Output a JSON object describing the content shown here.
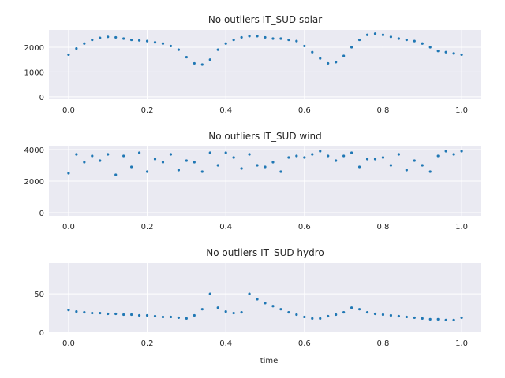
{
  "figure": {
    "xlabel": "time"
  },
  "colors": {
    "points": "#1f77b4",
    "panel": "#EAEAF2",
    "grid": "#ffffff"
  },
  "chart_data": [
    {
      "type": "scatter",
      "title": "No outliers IT_SUD solar",
      "xlabel": "",
      "ylabel": "",
      "xlim": [
        -0.05,
        1.05
      ],
      "ylim": [
        -100,
        2700
      ],
      "xticks": [
        0.0,
        0.2,
        0.4,
        0.6,
        0.8,
        1.0
      ],
      "xtick_labels": [
        "0.0",
        "0.2",
        "0.4",
        "0.6",
        "0.8",
        "1.0"
      ],
      "yticks": [
        0,
        1000,
        2000
      ],
      "ytick_labels": [
        "0",
        "1000",
        "2000"
      ],
      "grid": true,
      "series": [
        {
          "x": [
            0.0,
            0.02,
            0.04,
            0.06,
            0.08,
            0.1,
            0.12,
            0.14,
            0.16,
            0.18,
            0.2,
            0.22,
            0.24,
            0.26,
            0.28,
            0.3,
            0.32,
            0.34,
            0.36,
            0.38,
            0.4,
            0.42,
            0.44,
            0.46,
            0.48,
            0.5,
            0.52,
            0.54,
            0.56,
            0.58,
            0.6,
            0.62,
            0.64,
            0.66,
            0.68,
            0.7,
            0.72,
            0.74,
            0.76,
            0.78,
            0.8,
            0.82,
            0.84,
            0.86,
            0.88,
            0.9,
            0.92,
            0.94,
            0.96,
            0.98,
            1.0
          ],
          "y": [
            1700,
            1950,
            2150,
            2300,
            2380,
            2420,
            2400,
            2350,
            2300,
            2280,
            2250,
            2200,
            2150,
            2050,
            1900,
            1600,
            1350,
            1300,
            1500,
            1900,
            2150,
            2300,
            2400,
            2450,
            2450,
            2400,
            2350,
            2350,
            2300,
            2250,
            2050,
            1800,
            1550,
            1350,
            1400,
            1650,
            2000,
            2300,
            2500,
            2550,
            2500,
            2420,
            2350,
            2300,
            2250,
            2150,
            2000,
            1850,
            1800,
            1750,
            1700
          ]
        }
      ]
    },
    {
      "type": "scatter",
      "title": "No outliers IT_SUD wind",
      "xlabel": "",
      "ylabel": "",
      "xlim": [
        -0.05,
        1.05
      ],
      "ylim": [
        -200,
        4200
      ],
      "xticks": [
        0.0,
        0.2,
        0.4,
        0.6,
        0.8,
        1.0
      ],
      "xtick_labels": [
        "0.0",
        "0.2",
        "0.4",
        "0.6",
        "0.8",
        "1.0"
      ],
      "yticks": [
        0,
        2000,
        4000
      ],
      "ytick_labels": [
        "0",
        "2000",
        "4000"
      ],
      "grid": true,
      "series": [
        {
          "x": [
            0.0,
            0.02,
            0.04,
            0.06,
            0.08,
            0.1,
            0.12,
            0.14,
            0.16,
            0.18,
            0.2,
            0.22,
            0.24,
            0.26,
            0.28,
            0.3,
            0.32,
            0.34,
            0.36,
            0.38,
            0.4,
            0.42,
            0.44,
            0.46,
            0.48,
            0.5,
            0.52,
            0.54,
            0.56,
            0.58,
            0.6,
            0.62,
            0.64,
            0.66,
            0.68,
            0.7,
            0.72,
            0.74,
            0.76,
            0.78,
            0.8,
            0.82,
            0.84,
            0.86,
            0.88,
            0.9,
            0.92,
            0.94,
            0.96,
            0.98,
            1.0
          ],
          "y": [
            2500,
            3700,
            3200,
            3600,
            3300,
            3700,
            2400,
            3600,
            2900,
            3800,
            2600,
            3400,
            3200,
            3700,
            2700,
            3300,
            3200,
            2600,
            3800,
            3000,
            3800,
            3500,
            2800,
            3700,
            3000,
            2900,
            3200,
            2600,
            3500,
            3600,
            3500,
            3700,
            3900,
            3600,
            3300,
            3600,
            3800,
            2900,
            3400,
            3400,
            3500,
            3000,
            3700,
            2700,
            3300,
            3000,
            2600,
            3600,
            3900,
            3700,
            3900
          ]
        }
      ]
    },
    {
      "type": "scatter",
      "title": "No outliers IT_SUD hydro",
      "xlabel": "time",
      "ylabel": "",
      "xlim": [
        -0.05,
        1.05
      ],
      "ylim": [
        0,
        90
      ],
      "xticks": [
        0.0,
        0.2,
        0.4,
        0.6,
        0.8,
        1.0
      ],
      "xtick_labels": [
        "0.0",
        "0.2",
        "0.4",
        "0.6",
        "0.8",
        "1.0"
      ],
      "yticks": [
        0,
        50
      ],
      "ytick_labels": [
        "0",
        "50"
      ],
      "grid": true,
      "series": [
        {
          "x": [
            0.0,
            0.02,
            0.04,
            0.06,
            0.08,
            0.1,
            0.12,
            0.14,
            0.16,
            0.18,
            0.2,
            0.22,
            0.24,
            0.26,
            0.28,
            0.3,
            0.32,
            0.34,
            0.36,
            0.38,
            0.4,
            0.42,
            0.44,
            0.46,
            0.48,
            0.5,
            0.52,
            0.54,
            0.56,
            0.58,
            0.6,
            0.62,
            0.64,
            0.66,
            0.68,
            0.7,
            0.72,
            0.74,
            0.76,
            0.78,
            0.8,
            0.82,
            0.84,
            0.86,
            0.88,
            0.9,
            0.92,
            0.94,
            0.96,
            0.98,
            1.0
          ],
          "y": [
            29,
            27,
            26,
            25,
            25,
            24,
            24,
            23,
            23,
            22,
            22,
            21,
            20,
            20,
            19,
            18,
            22,
            30,
            50,
            32,
            27,
            25,
            26,
            50,
            43,
            38,
            34,
            30,
            26,
            23,
            20,
            18,
            18,
            21,
            23,
            26,
            32,
            30,
            26,
            24,
            23,
            22,
            21,
            20,
            19,
            18,
            17,
            17,
            16,
            16,
            19
          ]
        }
      ]
    }
  ]
}
